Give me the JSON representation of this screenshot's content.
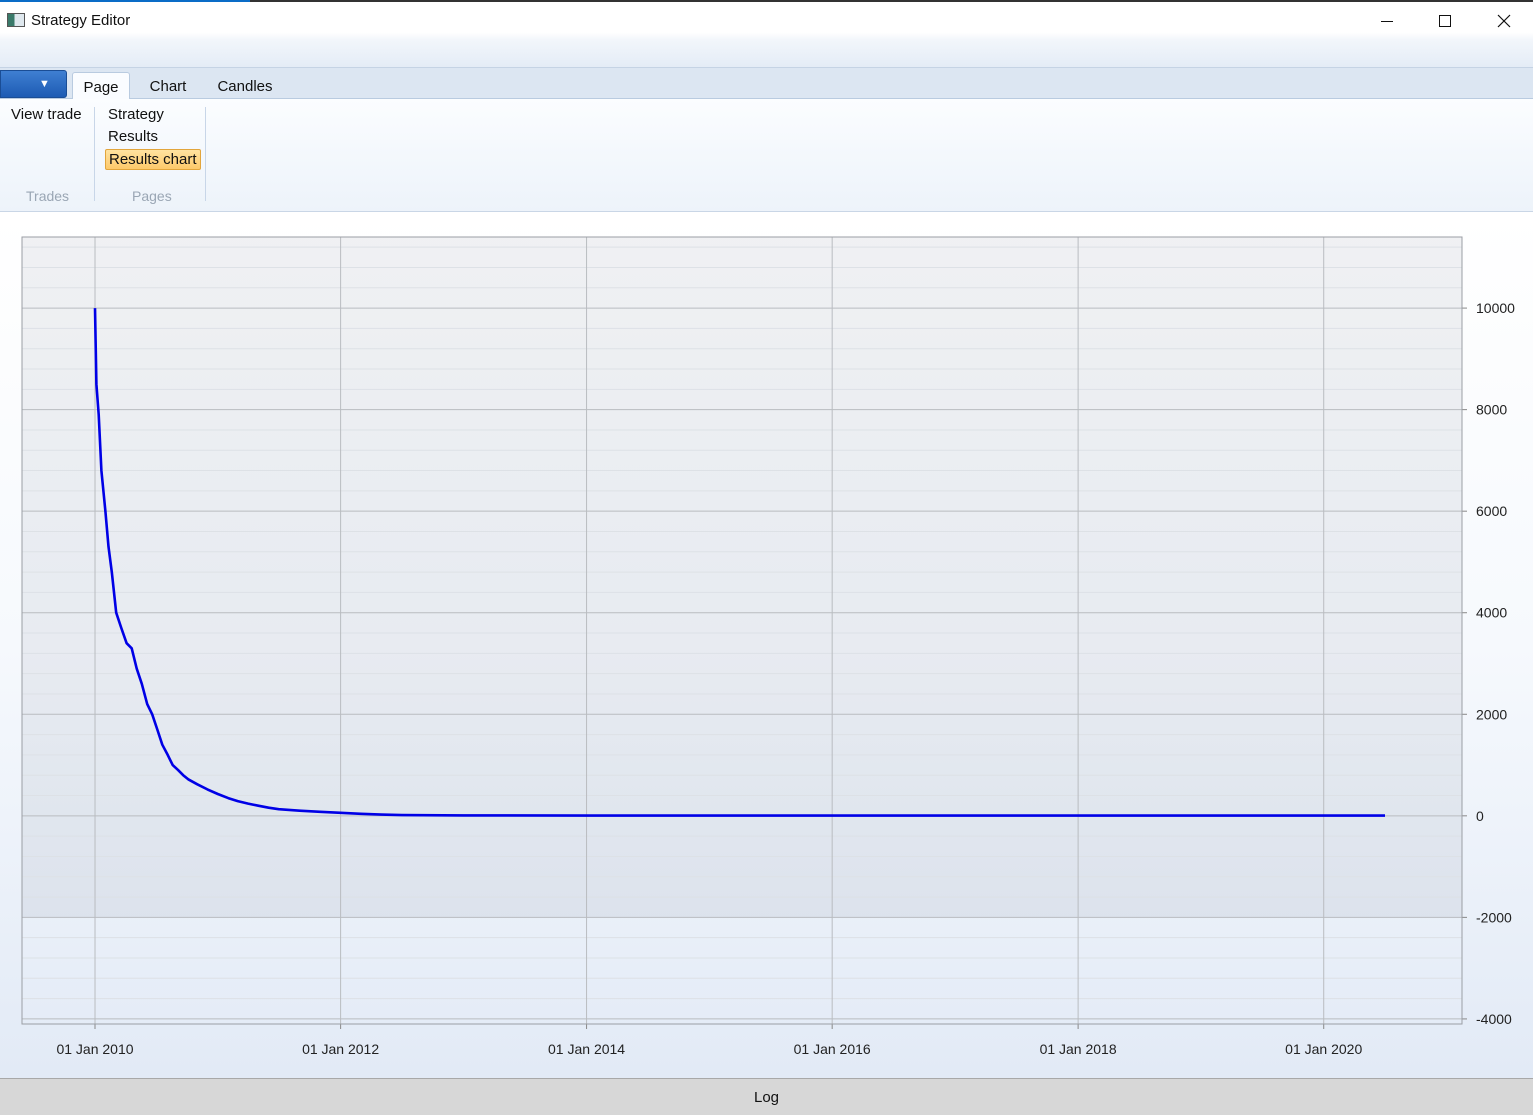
{
  "window": {
    "title": "Strategy Editor",
    "icon": "app-window-icon"
  },
  "ribbon": {
    "app_menu_glyph": "▼",
    "tabs": [
      {
        "label": "Page",
        "selected": true
      },
      {
        "label": "Chart",
        "selected": false
      },
      {
        "label": "Candles",
        "selected": false
      }
    ],
    "groups": {
      "trades": {
        "label": "Trades",
        "items": [
          "View trade"
        ]
      },
      "pages": {
        "label": "Pages",
        "items": [
          "Strategy",
          "Results",
          "Results chart"
        ],
        "selected": "Results chart"
      }
    }
  },
  "chart_data": {
    "type": "line",
    "title": "",
    "xlabel": "",
    "ylabel": "",
    "line_color": "#0000e6",
    "x_tick_labels": [
      "01 Jan 2010",
      "01 Jan 2012",
      "01 Jan 2014",
      "01 Jan 2016",
      "01 Jan 2018",
      "01 Jan 2020"
    ],
    "y_tick_labels": [
      "10000",
      "8000",
      "6000",
      "4000",
      "2000",
      "0",
      "-2000",
      "-4000"
    ],
    "xlim": [
      "2009-05-29",
      "2021-02-15"
    ],
    "ylim": [
      -4100,
      11400
    ],
    "y_axis_position": "right",
    "grid": true,
    "alternating_bands": true,
    "series": [
      {
        "x": [
          "2010-01-01",
          "2010-01-05",
          "2010-01-12",
          "2010-01-20",
          "2010-02-01",
          "2010-02-10",
          "2010-02-20",
          "2010-03-05",
          "2010-03-20",
          "2010-04-05",
          "2010-04-20",
          "2010-05-05",
          "2010-05-20",
          "2010-06-05",
          "2010-06-20",
          "2010-07-05",
          "2010-07-20",
          "2010-08-05",
          "2010-08-20",
          "2010-09-05",
          "2010-09-20",
          "2010-10-05",
          "2010-11-01",
          "2010-12-01",
          "2011-01-01",
          "2011-02-01",
          "2011-03-01",
          "2011-04-01",
          "2011-05-01",
          "2011-06-01",
          "2011-07-01",
          "2011-09-01",
          "2011-11-01",
          "2012-01-01",
          "2012-03-01",
          "2012-05-01",
          "2012-07-01",
          "2013-01-01",
          "2014-01-01",
          "2016-01-01",
          "2018-01-01",
          "2020-07-01"
        ],
        "y": [
          10000,
          8500,
          7900,
          6800,
          6000,
          5300,
          4800,
          4000,
          3700,
          3400,
          3300,
          2900,
          2600,
          2200,
          2000,
          1700,
          1400,
          1200,
          1000,
          900,
          800,
          720,
          620,
          520,
          430,
          350,
          290,
          240,
          200,
          160,
          130,
          100,
          80,
          60,
          40,
          25,
          15,
          8,
          5,
          5,
          5,
          5
        ]
      }
    ]
  },
  "statusbar": {
    "log_label": "Log"
  }
}
